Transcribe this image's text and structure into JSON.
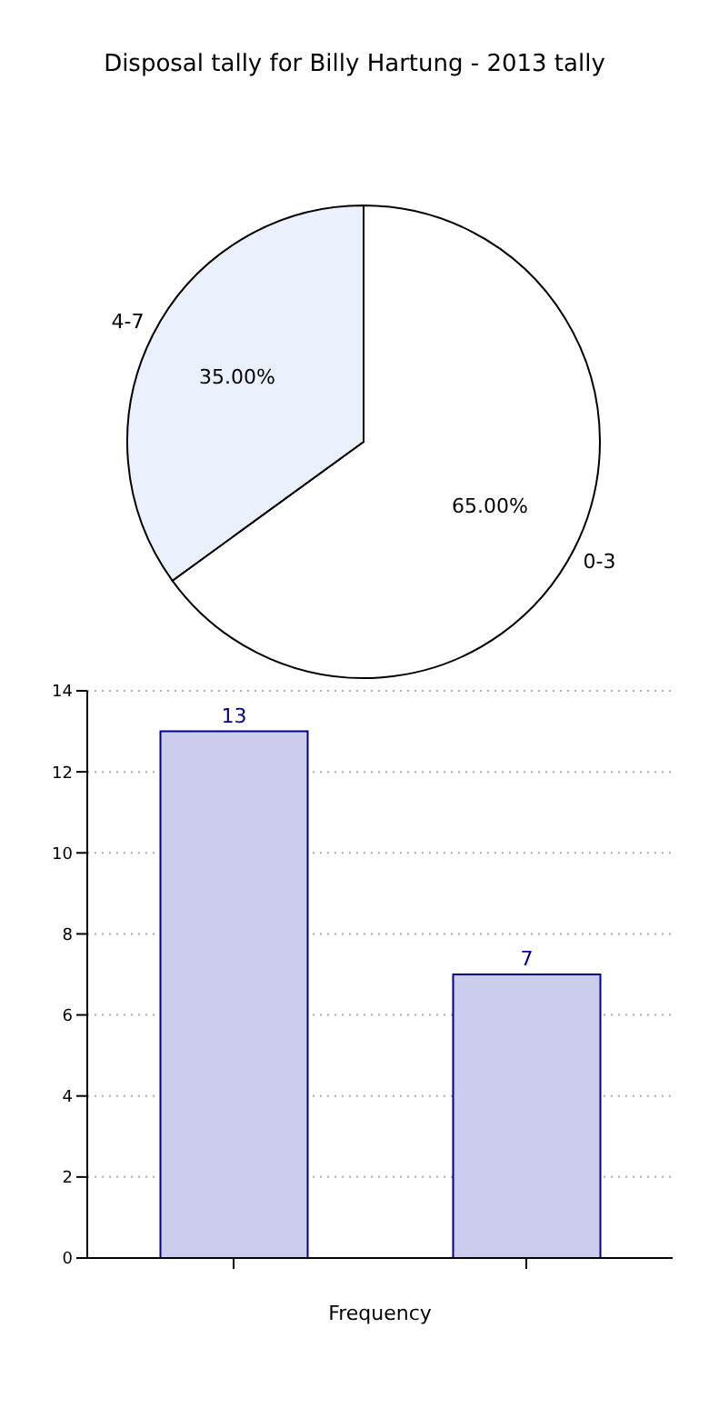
{
  "chart_data": [
    {
      "type": "pie",
      "title": "Disposal tally for Billy Hartung - 2013 tally",
      "categories": [
        "0-3",
        "4-7"
      ],
      "values": [
        65,
        35
      ],
      "colors": [
        "#ffffff",
        "#eaf0fc"
      ],
      "value_labels": [
        "65.00%",
        "35.00%"
      ]
    },
    {
      "type": "bar",
      "xlabel": "Frequency",
      "categories": [
        null,
        null
      ],
      "values": [
        13,
        7
      ],
      "color": "#ccccee",
      "ylim": [
        0,
        14
      ],
      "yticks": [
        0,
        2,
        4,
        6,
        8,
        10,
        12,
        14
      ],
      "grid": "y",
      "data_labels": true
    }
  ]
}
